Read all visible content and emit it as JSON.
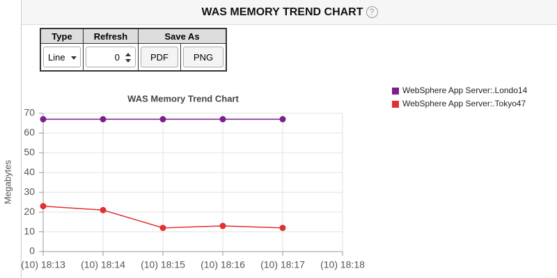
{
  "header": {
    "title": "WAS MEMORY TREND CHART",
    "help_icon": "?"
  },
  "controls": {
    "headers": [
      "Type",
      "Refresh",
      "Save As"
    ],
    "type_value": "Line",
    "refresh_value": "0",
    "buttons": [
      "PDF",
      "PNG"
    ]
  },
  "chart_data": {
    "type": "line",
    "title": "WAS Memory Trend Chart",
    "y_label": "Megabytes",
    "categories": [
      "(10) 18:13",
      "(10) 18:14",
      "(10) 18:15",
      "(10) 18:16",
      "(10) 18:17",
      "(10) 18:18"
    ],
    "series": [
      {
        "name": "WebSphere App Server:.Londo14",
        "color": "#7b1f8c",
        "values": [
          67,
          67,
          67,
          67,
          67,
          null
        ]
      },
      {
        "name": "WebSphere App Server:.Tokyo47",
        "color": "#e03030",
        "values": [
          23,
          21,
          12,
          13,
          12,
          null
        ]
      }
    ],
    "ylim": [
      0,
      70
    ],
    "yticks": [
      0,
      10,
      20,
      30,
      40,
      50,
      60,
      70
    ],
    "grid": true,
    "legend": "top-right"
  }
}
